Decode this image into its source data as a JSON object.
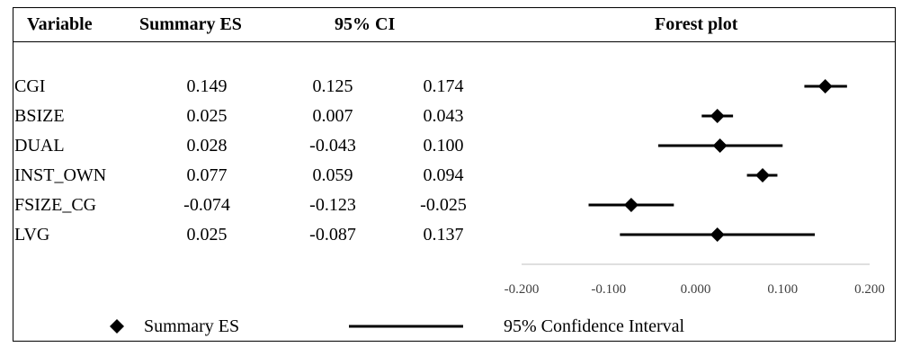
{
  "table": {
    "headers": {
      "variable": "Variable",
      "summary_es": "Summary ES",
      "ci": "95% CI",
      "forest": "Forest plot"
    }
  },
  "chart_data": {
    "type": "forest",
    "title": "Forest plot",
    "x_ticks": [
      -0.2,
      -0.1,
      0.0,
      0.1,
      0.2
    ],
    "x_tick_labels": [
      "-0.200",
      "-0.100",
      "0.000",
      "0.100",
      "0.200"
    ],
    "xlim": [
      -0.2,
      0.2
    ],
    "rows": [
      {
        "variable": "CGI",
        "es": 0.149,
        "lo": 0.125,
        "hi": 0.174,
        "es_label": "0.149",
        "lo_label": "0.125",
        "hi_label": "0.174"
      },
      {
        "variable": "BSIZE",
        "es": 0.025,
        "lo": 0.007,
        "hi": 0.043,
        "es_label": "0.025",
        "lo_label": "0.007",
        "hi_label": "0.043"
      },
      {
        "variable": "DUAL",
        "es": 0.028,
        "lo": -0.043,
        "hi": 0.1,
        "es_label": "0.028",
        "lo_label": "-0.043",
        "hi_label": "0.100"
      },
      {
        "variable": "INST_OWN",
        "es": 0.077,
        "lo": 0.059,
        "hi": 0.094,
        "es_label": "0.077",
        "lo_label": "0.059",
        "hi_label": "0.094"
      },
      {
        "variable": "FSIZE_CG",
        "es": -0.074,
        "lo": -0.123,
        "hi": -0.025,
        "es_label": "-0.074",
        "lo_label": "-0.123",
        "hi_label": "-0.025"
      },
      {
        "variable": "LVG",
        "es": 0.025,
        "lo": -0.087,
        "hi": 0.137,
        "es_label": "0.025",
        "lo_label": "-0.087",
        "hi_label": "0.137"
      }
    ],
    "legend": {
      "position": "bottom",
      "marker_label": "Summary ES",
      "line_label": "95% Confidence Interval"
    },
    "colors": {
      "marks": "#000000",
      "axis": "#bfbfbf"
    }
  }
}
